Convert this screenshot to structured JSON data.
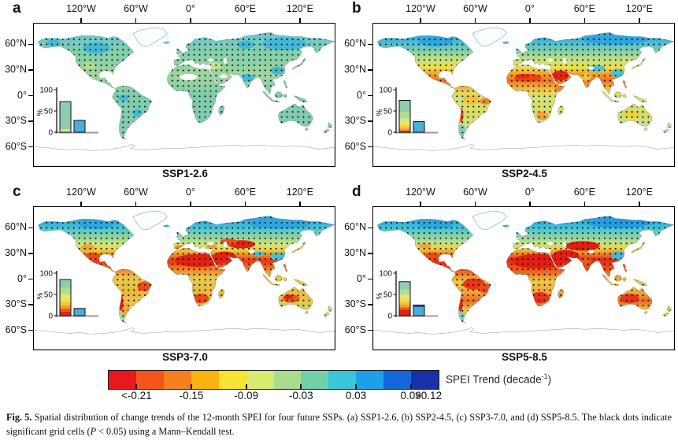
{
  "figure": {
    "panels": [
      {
        "letter": "a",
        "title": "SSP1-2.6",
        "map_gradient": [
          [
            0,
            "#7fd0c0"
          ],
          [
            0.1,
            "#6cc8cc"
          ],
          [
            0.18,
            "#7fceae"
          ],
          [
            0.3,
            "#93d2a2"
          ],
          [
            0.36,
            "#a0d59c"
          ],
          [
            0.5,
            "#7fccab"
          ],
          [
            0.7,
            "#82cbb2"
          ],
          [
            1,
            "#8fd2c2"
          ]
        ],
        "map_blobs": [
          [
            -100,
            58,
            16,
            7,
            "#41b8da"
          ],
          [
            -150,
            64,
            8,
            4,
            "#41b8da"
          ],
          [
            120,
            63,
            26,
            8,
            "#41b8da"
          ],
          [
            75,
            62,
            10,
            5,
            "#41b8da"
          ],
          [
            77,
            21,
            7,
            5,
            "#41b8da"
          ],
          [
            -68,
            -4,
            6,
            4,
            "#41b8da"
          ],
          [
            -52,
            -22,
            6,
            4,
            "#41b8da"
          ],
          [
            112,
            30,
            8,
            5,
            "#41b8da"
          ],
          [
            38,
            36,
            9,
            4,
            "#c6e387"
          ],
          [
            -108,
            36,
            7,
            4,
            "#b8dd8c"
          ]
        ],
        "map_nodata": [
          [
            8,
            22,
            10,
            4
          ],
          [
            49,
            23,
            5,
            2.5
          ],
          [
            51,
            42,
            2.2,
            3.5
          ],
          [
            34,
            43,
            3,
            2
          ]
        ]
      },
      {
        "letter": "b",
        "title": "SSP2-4.5",
        "map_gradient": [
          [
            0,
            "#49bcdc"
          ],
          [
            0.09,
            "#35aadf"
          ],
          [
            0.14,
            "#49c2d2"
          ],
          [
            0.2,
            "#8fd0a0"
          ],
          [
            0.26,
            "#c9e37e"
          ],
          [
            0.31,
            "#eede44"
          ],
          [
            0.35,
            "#f5a22c"
          ],
          [
            0.4,
            "#f07020"
          ],
          [
            0.44,
            "#f2a83a"
          ],
          [
            0.48,
            "#e8d452"
          ],
          [
            0.52,
            "#cfe47e"
          ],
          [
            0.62,
            "#d8dc62"
          ],
          [
            0.68,
            "#cfe080"
          ],
          [
            0.8,
            "#9fd6b0"
          ],
          [
            1,
            "#9fd6b0"
          ]
        ],
        "map_blobs": [
          [
            8,
            21,
            16,
            5,
            "#ee4416"
          ],
          [
            2,
            23,
            8,
            3,
            "#e82c16"
          ],
          [
            46,
            24,
            10,
            6,
            "#e52015"
          ],
          [
            110,
            68,
            38,
            6,
            "#2ba6e0"
          ],
          [
            -100,
            66,
            20,
            6,
            "#2ba6e0"
          ],
          [
            88,
            33,
            10,
            4,
            "#45c2d8"
          ],
          [
            113,
            27,
            8,
            5,
            "#45c2d8"
          ],
          [
            -58,
            -6,
            10,
            6,
            "#f2c43e"
          ],
          [
            -42,
            -8,
            6,
            4,
            "#f0862a"
          ],
          [
            -70,
            -25,
            2.5,
            9,
            "#e84c16"
          ],
          [
            -70,
            -45,
            5,
            8,
            "#7fccab"
          ],
          [
            25,
            -26,
            7,
            5,
            "#f2a23a"
          ],
          [
            130,
            -25,
            9,
            5,
            "#eed23e"
          ],
          [
            76,
            22,
            6,
            5,
            "#f2c43e"
          ],
          [
            44,
            8,
            5,
            4,
            "#f0862a"
          ]
        ],
        "map_nodata": [
          [
            82,
            33,
            3.5,
            2
          ],
          [
            51,
            42,
            2.2,
            3.5
          ],
          [
            34,
            43,
            3,
            2
          ]
        ]
      },
      {
        "letter": "c",
        "title": "SSP3-7.0",
        "map_gradient": [
          [
            0,
            "#49bcdc"
          ],
          [
            0.09,
            "#2ba4e0"
          ],
          [
            0.15,
            "#49c4d4"
          ],
          [
            0.21,
            "#93d29c"
          ],
          [
            0.26,
            "#cfe47e"
          ],
          [
            0.3,
            "#eed23e"
          ],
          [
            0.34,
            "#f08024"
          ],
          [
            0.38,
            "#ea3615"
          ],
          [
            0.44,
            "#f0862a"
          ],
          [
            0.5,
            "#e8cc4e"
          ],
          [
            0.6,
            "#eab83e"
          ],
          [
            0.67,
            "#e8c84a"
          ],
          [
            0.76,
            "#a8d898"
          ],
          [
            1,
            "#9fd6b0"
          ]
        ],
        "map_blobs": [
          [
            20,
            22,
            28,
            8,
            "#e42112"
          ],
          [
            50,
            26,
            14,
            7,
            "#e42112"
          ],
          [
            70,
            42,
            16,
            5,
            "#e42112"
          ],
          [
            55,
            45,
            10,
            4,
            "#ee4a18"
          ],
          [
            -104,
            27,
            9,
            5,
            "#ee4a18"
          ],
          [
            -110,
            38,
            8,
            4,
            "#f2a43a"
          ],
          [
            22,
            -25,
            10,
            6,
            "#ee4a18"
          ],
          [
            128,
            -25,
            10,
            5,
            "#ee5a1a"
          ],
          [
            125,
            -23,
            5,
            3,
            "#e42112"
          ],
          [
            -44,
            -10,
            8,
            6,
            "#ee4a18"
          ],
          [
            -66,
            -38,
            5,
            8,
            "#f2a43a"
          ],
          [
            -71,
            -30,
            2.5,
            10,
            "#e42112"
          ],
          [
            0,
            38,
            8,
            3,
            "#f08024"
          ],
          [
            35,
            39,
            6,
            3,
            "#f0a030"
          ],
          [
            90,
            30,
            7,
            3,
            "#45c2d8"
          ],
          [
            113,
            27,
            9,
            5,
            "#45c2d8"
          ],
          [
            115,
            67,
            35,
            6,
            "#2ba6e0"
          ],
          [
            -100,
            66,
            20,
            5,
            "#2ba6e0"
          ]
        ],
        "map_nodata": [
          [
            82,
            33,
            3.5,
            2
          ],
          [
            51,
            42,
            2.2,
            3.5
          ],
          [
            34,
            43,
            3,
            2
          ]
        ]
      },
      {
        "letter": "d",
        "title": "SSP5-8.5",
        "map_gradient": [
          [
            0,
            "#3fb4e0"
          ],
          [
            0.09,
            "#28a2e2"
          ],
          [
            0.15,
            "#45c4d6"
          ],
          [
            0.2,
            "#85cfa8"
          ],
          [
            0.25,
            "#bfe08a"
          ],
          [
            0.29,
            "#eed23e"
          ],
          [
            0.33,
            "#f08024"
          ],
          [
            0.37,
            "#e82815"
          ],
          [
            0.46,
            "#ee6a1e"
          ],
          [
            0.52,
            "#eec94a"
          ],
          [
            0.6,
            "#f0a43a"
          ],
          [
            0.66,
            "#ee6a1e"
          ],
          [
            0.72,
            "#e8c44a"
          ],
          [
            0.8,
            "#a8d898"
          ],
          [
            1,
            "#9fd6b0"
          ]
        ],
        "map_blobs": [
          [
            20,
            21,
            30,
            9,
            "#e41d10"
          ],
          [
            52,
            27,
            16,
            8,
            "#e41d10"
          ],
          [
            72,
            40,
            20,
            6,
            "#e41d10"
          ],
          [
            -55,
            -7,
            13,
            7,
            "#ea3415"
          ],
          [
            -43,
            -12,
            7,
            6,
            "#ee4a18"
          ],
          [
            22,
            -24,
            11,
            7,
            "#e8351a"
          ],
          [
            127,
            -25,
            11,
            6,
            "#e8351a"
          ],
          [
            -104,
            27,
            9,
            5,
            "#ee4a18"
          ],
          [
            -112,
            40,
            7,
            4,
            "#f2a43a"
          ],
          [
            76,
            21,
            6,
            4,
            "#ee5a1a"
          ],
          [
            114,
            28,
            9,
            5,
            "#3fb6dc"
          ],
          [
            115,
            68,
            36,
            6,
            "#1f9ce4"
          ],
          [
            -100,
            66,
            20,
            5,
            "#28a6e0"
          ],
          [
            -71,
            -32,
            2.5,
            9,
            "#e42112"
          ],
          [
            -70,
            -47,
            4,
            6,
            "#7fccab"
          ]
        ],
        "map_nodata": [
          [
            82,
            33,
            3.5,
            2
          ],
          [
            51,
            42,
            2.2,
            3.5
          ],
          [
            34,
            43,
            3,
            2
          ]
        ]
      }
    ],
    "axes": {
      "lon_labels": [
        "120°W",
        "60°W",
        "0°",
        "60°E",
        "120°E"
      ],
      "lon_fracs": [
        0.158,
        0.338,
        0.518,
        0.698,
        0.878
      ],
      "lat_labels": [
        "60°N",
        "30°N",
        "0°",
        "30°S",
        "60°S"
      ],
      "lat_fracs": [
        0.148,
        0.324,
        0.5,
        0.676,
        0.852
      ]
    },
    "inset_axis": {
      "unit_label": "%",
      "ticks": [
        0,
        50,
        100
      ]
    },
    "colorbar": {
      "title_pre": "SPEI Trend (decade",
      "title_sup": "-1",
      "title_post": ")"
    },
    "caption": {
      "label": "Fig. 5.",
      "text1": " Spatial distribution of change trends of the 12-month SPEI for four future SSPs. (a) SSP1-2.6, (b) SSP2-4.5, (c) SSP3-7.0, and (d) SSP5-8.5. The black dots indicate significant grid cells (",
      "p_italic": "P",
      "text2": " < 0.05) using a Mann–Kendall test."
    }
  },
  "chart_data": [
    {
      "type": "bar",
      "panel": "a",
      "scenario": "SSP1-2.6",
      "ylabel": "%",
      "ylim": [
        0,
        100
      ],
      "yticks": [
        0,
        50,
        100
      ],
      "bars": [
        {
          "name": "drying-category-stack",
          "segments": [
            {
              "color": "#d9e97e",
              "value": 7
            },
            {
              "color": "#8fccab",
              "value": 65
            }
          ]
        },
        {
          "name": "wetting-bar",
          "segments": [
            {
              "color": "#4aaed8",
              "value": 28
            }
          ]
        }
      ]
    },
    {
      "type": "bar",
      "panel": "b",
      "scenario": "SSP2-4.5",
      "ylabel": "%",
      "ylim": [
        0,
        100
      ],
      "yticks": [
        0,
        50,
        100
      ],
      "bars": [
        {
          "name": "drying-category-stack",
          "segments": [
            {
              "color": "#a63310",
              "value": 2
            },
            {
              "color": "#ee5a1a",
              "value": 3
            },
            {
              "color": "#f59b2c",
              "value": 4
            },
            {
              "color": "#f2c43e",
              "value": 5
            },
            {
              "color": "#f2e04a",
              "value": 7
            },
            {
              "color": "#d9e97e",
              "value": 11
            },
            {
              "color": "#b4dc8e",
              "value": 16
            },
            {
              "color": "#8fccab",
              "value": 27
            }
          ]
        },
        {
          "name": "wetting-bar",
          "segments": [
            {
              "color": "#4aaed8",
              "value": 25
            }
          ]
        }
      ]
    },
    {
      "type": "bar",
      "panel": "c",
      "scenario": "SSP3-7.0",
      "ylabel": "%",
      "ylim": [
        0,
        100
      ],
      "yticks": [
        0,
        50,
        100
      ],
      "bars": [
        {
          "name": "drying-category-stack",
          "segments": [
            {
              "color": "#e02315",
              "value": 10
            },
            {
              "color": "#ee5a1a",
              "value": 7
            },
            {
              "color": "#f59b2c",
              "value": 7
            },
            {
              "color": "#f2c43e",
              "value": 8
            },
            {
              "color": "#f2e04a",
              "value": 9
            },
            {
              "color": "#d9e97e",
              "value": 10
            },
            {
              "color": "#b4dc8e",
              "value": 14
            },
            {
              "color": "#8fccab",
              "value": 20
            }
          ]
        },
        {
          "name": "wetting-bar",
          "segments": [
            {
              "color": "#4aaed8",
              "value": 17
            }
          ]
        }
      ]
    },
    {
      "type": "bar",
      "panel": "d",
      "scenario": "SSP5-8.5",
      "ylabel": "%",
      "ylim": [
        0,
        100
      ],
      "yticks": [
        0,
        50,
        100
      ],
      "bars": [
        {
          "name": "drying-category-stack",
          "segments": [
            {
              "color": "#e02315",
              "value": 14
            },
            {
              "color": "#ee5a1a",
              "value": 6
            },
            {
              "color": "#f59b2c",
              "value": 6
            },
            {
              "color": "#f2c43e",
              "value": 7
            },
            {
              "color": "#f2e04a",
              "value": 8
            },
            {
              "color": "#d9e97e",
              "value": 9
            },
            {
              "color": "#b4dc8e",
              "value": 12
            },
            {
              "color": "#8fccab",
              "value": 18
            }
          ]
        },
        {
          "name": "wetting-bar",
          "segments": [
            {
              "color": "#4aaed8",
              "value": 20
            },
            {
              "color": "#1d50b8",
              "value": 5
            }
          ]
        }
      ]
    },
    {
      "type": "colorbar",
      "title": "SPEI Trend (decade^-1)",
      "colors": [
        "#e8181c",
        "#f4531d",
        "#f57f1e",
        "#fbb30f",
        "#f8e433",
        "#d9ea6e",
        "#a9dc8e",
        "#72d0a8",
        "#3cc5d8",
        "#1ba0ea",
        "#1468dc",
        "#1830a8"
      ],
      "tick_labels": [
        "<-0.21",
        "-0.15",
        "-0.09",
        "-0.03",
        "0.03",
        "0.09",
        ">0.12"
      ],
      "tick_boundary_indices": [
        1,
        3,
        5,
        7,
        9,
        11
      ]
    }
  ]
}
